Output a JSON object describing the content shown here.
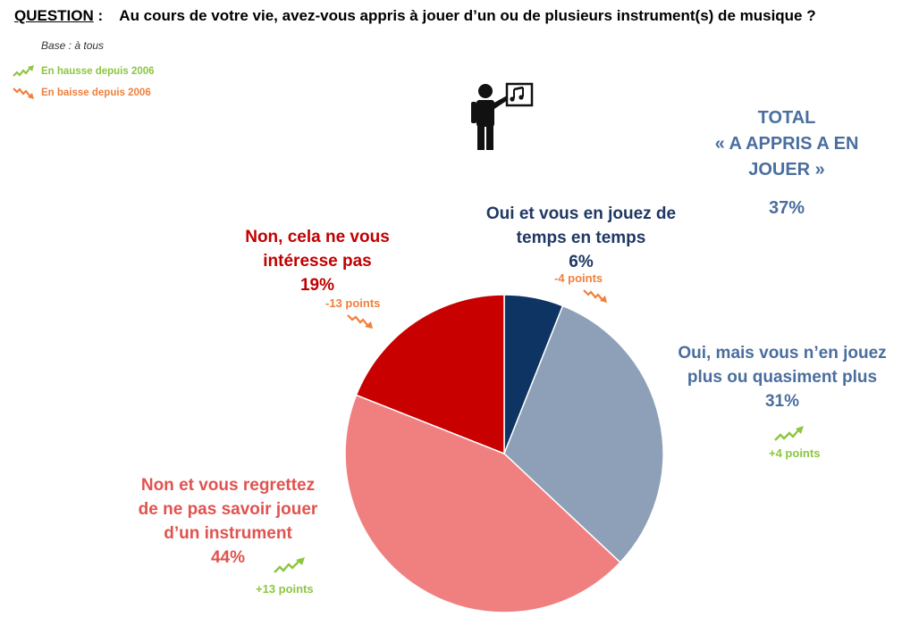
{
  "header": {
    "question_label": "QUESTION",
    "question_sep": ":",
    "question_text": "Au cours de votre vie, avez-vous appris à jouer d’un ou de plusieurs instrument(s) de musique ?",
    "base": "Base : à tous"
  },
  "legend": {
    "up": {
      "label": "En hausse depuis 2006",
      "icon": "trend-up-icon",
      "color": "#8cc63f"
    },
    "down": {
      "label": "En baisse depuis 2006",
      "icon": "trend-down-icon",
      "color": "#f07f3c"
    }
  },
  "total": {
    "line1": "TOTAL",
    "line2": "« A APPRIS A EN",
    "line3": "JOUER »",
    "value": "37%"
  },
  "chart_data": {
    "type": "pie",
    "start_angle_deg": 0,
    "direction": "clockwise",
    "slices": [
      {
        "id": "temps",
        "label_lines": [
          "Oui et vous en jouez de",
          "temps en temps"
        ],
        "value": 6,
        "value_label": "6%",
        "color": "#0d3463",
        "label_color": "#1f3864",
        "change": "-4 points",
        "change_dir": "down"
      },
      {
        "id": "plus",
        "label_lines": [
          "Oui, mais vous n’en jouez",
          "plus ou quasiment plus"
        ],
        "value": 31,
        "value_label": "31%",
        "color": "#8ea0b8",
        "label_color": "#4a6e9e",
        "change": "+4 points",
        "change_dir": "up"
      },
      {
        "id": "regrettez",
        "label_lines": [
          "Non et vous regrettez",
          "de ne pas savoir jouer",
          "d’un instrument"
        ],
        "value": 44,
        "value_label": "44%",
        "color": "#f08080",
        "label_color": "#e0534f",
        "change": "+13 points",
        "change_dir": "up"
      },
      {
        "id": "interesse",
        "label_lines": [
          "Non, cela ne vous",
          "intéresse pas"
        ],
        "value": 19,
        "value_label": "19%",
        "color": "#c80000",
        "label_color": "#c00000",
        "change": "-13 points",
        "change_dir": "down"
      }
    ],
    "legend_position": "top-left"
  }
}
